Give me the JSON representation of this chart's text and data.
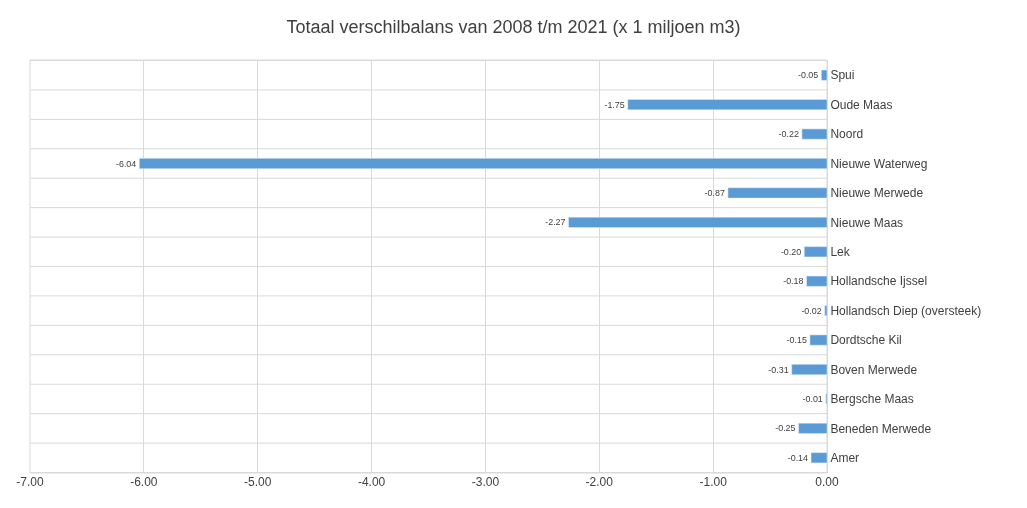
{
  "chart_data": {
    "type": "bar",
    "orientation": "horizontal",
    "title": "Totaal verschilbalans van 2008 t/m 2021 (x 1 miljoen m3)",
    "categories": [
      "Spui",
      "Oude Maas",
      "Noord",
      "Nieuwe Waterweg",
      "Nieuwe Merwede",
      "Nieuwe Maas",
      "Lek",
      "Hollandsche Ijssel",
      "Hollandsch Diep (oversteek)",
      "Dordtsche Kil",
      "Boven Merwede",
      "Bergsche Maas",
      "Beneden Merwede",
      "Amer"
    ],
    "values": [
      -0.05,
      -1.75,
      -0.22,
      -6.04,
      -0.87,
      -2.27,
      -0.2,
      -0.18,
      -0.02,
      -0.15,
      -0.31,
      -0.01,
      -0.25,
      -0.14
    ],
    "value_labels": [
      "-0.05",
      "-1.75",
      "-0.22",
      "-6.04",
      "-0.87",
      "-2.27",
      "-0.20",
      "-0.18",
      "-0.02",
      "-0.15",
      "-0.31",
      "-0.01",
      "-0.25",
      "-0.14"
    ],
    "color": "#5b9bd5",
    "xlim": [
      -7,
      0
    ],
    "xticks": [
      {
        "value": -7,
        "label": "-7.00"
      },
      {
        "value": -6,
        "label": "-6.00"
      },
      {
        "value": -5,
        "label": "-5.00"
      },
      {
        "value": -4,
        "label": "-4.00"
      },
      {
        "value": -3,
        "label": "-3.00"
      },
      {
        "value": -2,
        "label": "-2.00"
      },
      {
        "value": -1,
        "label": "-1.00"
      },
      {
        "value": 0,
        "label": "0.00"
      }
    ],
    "grid": true
  }
}
